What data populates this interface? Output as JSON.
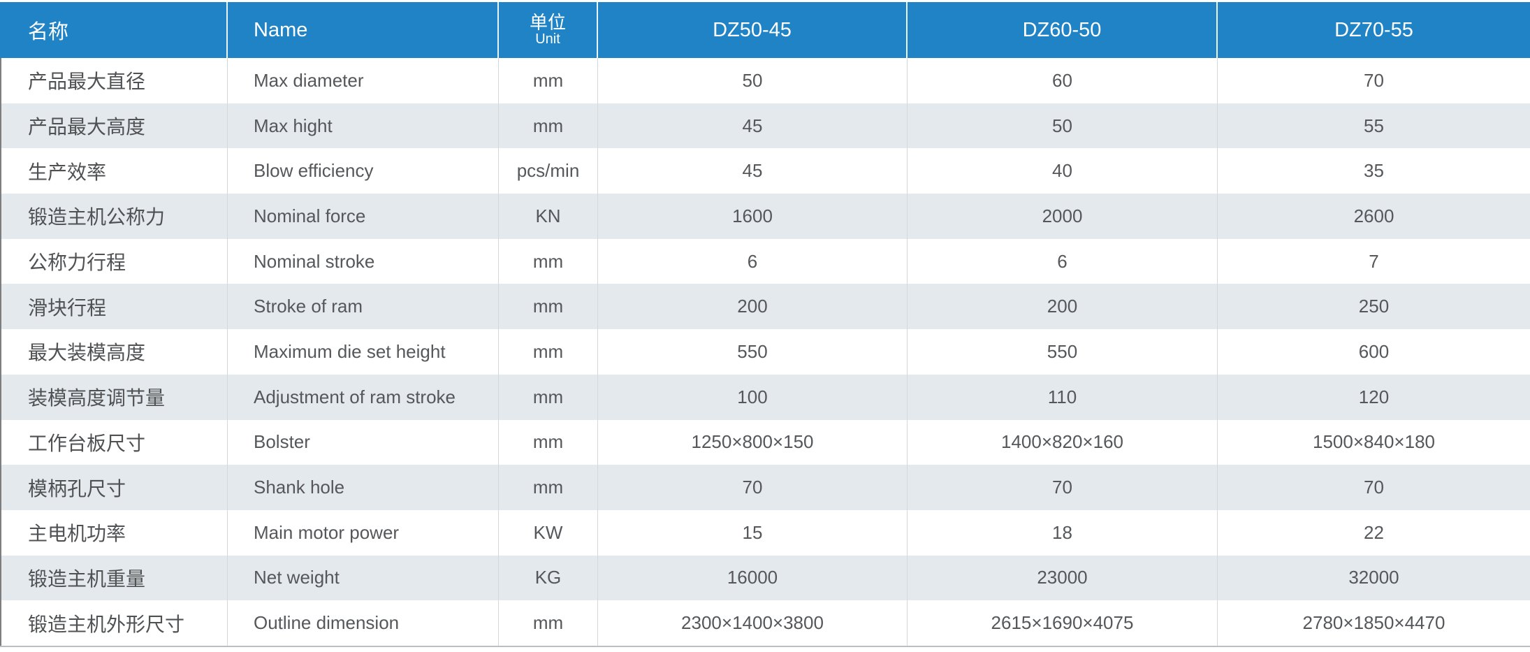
{
  "colors": {
    "header_bg": "#2083c5",
    "header_text": "#ffffff",
    "stripe_bg": "#e4e9ed",
    "row_bg": "#ffffff",
    "body_text": "#55575a",
    "cn_text": "#4f5153",
    "divider": "#d5d8db",
    "left_border": "#7e7e7e",
    "bottom_border": "#b9bfc3"
  },
  "header": {
    "name_cn": "名称",
    "name_en": "Name",
    "unit_cn": "单位",
    "unit_en": "Unit",
    "models": [
      "DZ50-45",
      "DZ60-50",
      "DZ70-55"
    ]
  },
  "rows": [
    {
      "cn": "产品最大直径",
      "en": "Max diameter",
      "unit": "mm",
      "values": [
        "50",
        "60",
        "70"
      ]
    },
    {
      "cn": "产品最大高度",
      "en": "Max hight",
      "unit": "mm",
      "values": [
        "45",
        "50",
        "55"
      ]
    },
    {
      "cn": "生产效率",
      "en": "Blow efficiency",
      "unit": "pcs/min",
      "values": [
        "45",
        "40",
        "35"
      ]
    },
    {
      "cn": "锻造主机公称力",
      "en": "Nominal force",
      "unit": "KN",
      "values": [
        "1600",
        "2000",
        "2600"
      ]
    },
    {
      "cn": "公称力行程",
      "en": "Nominal stroke",
      "unit": "mm",
      "values": [
        "6",
        "6",
        "7"
      ]
    },
    {
      "cn": "滑块行程",
      "en": "Stroke of ram",
      "unit": "mm",
      "values": [
        "200",
        "200",
        "250"
      ]
    },
    {
      "cn": "最大装模高度",
      "en": "Maximum die set height",
      "unit": "mm",
      "values": [
        "550",
        "550",
        "600"
      ]
    },
    {
      "cn": "装模高度调节量",
      "en": "Adjustment of ram stroke",
      "unit": "mm",
      "values": [
        "100",
        "110",
        "120"
      ]
    },
    {
      "cn": "工作台板尺寸",
      "en": "Bolster",
      "unit": "mm",
      "values": [
        "1250×800×150",
        "1400×820×160",
        "1500×840×180"
      ]
    },
    {
      "cn": "模柄孔尺寸",
      "en": "Shank hole",
      "unit": "mm",
      "values": [
        "70",
        "70",
        "70"
      ]
    },
    {
      "cn": "主电机功率",
      "en": "Main motor power",
      "unit": "KW",
      "values": [
        "15",
        "18",
        "22"
      ]
    },
    {
      "cn": "锻造主机重量",
      "en": "Net weight",
      "unit": "KG",
      "values": [
        "16000",
        "23000",
        "32000"
      ]
    },
    {
      "cn": "锻造主机外形尺寸",
      "en": "Outline dimension",
      "unit": "mm",
      "values": [
        "2300×1400×3800",
        "2615×1690×4075",
        "2780×1850×4470"
      ]
    }
  ]
}
